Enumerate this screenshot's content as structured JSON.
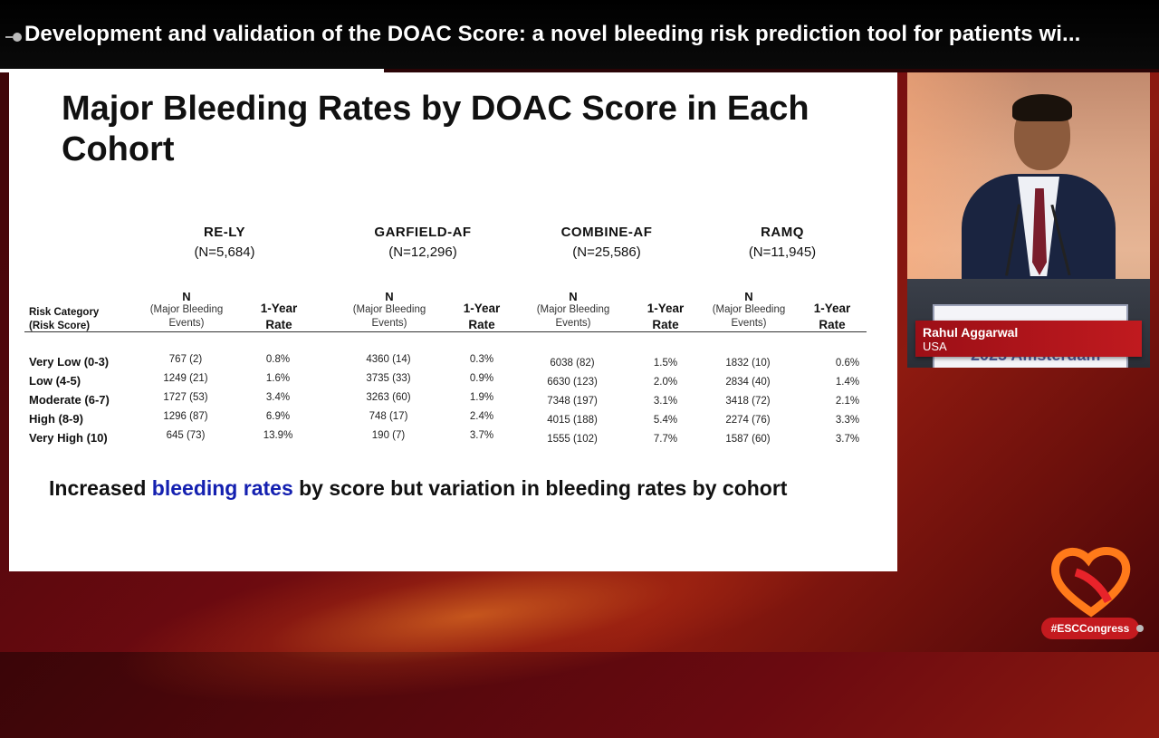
{
  "header": {
    "title": "Development and validation of the DOAC Score: a novel bleeding risk prediction tool for patients wi..."
  },
  "slide": {
    "title": "Major Bleeding Rates by DOAC Score in Each Cohort",
    "cohorts": [
      {
        "name": "RE-LY",
        "n": "(N=5,684)"
      },
      {
        "name": "GARFIELD-AF",
        "n": "(N=12,296)"
      },
      {
        "name": "COMBINE-AF",
        "n": "(N=25,586)"
      },
      {
        "name": "RAMQ",
        "n": "(N=11,945)"
      }
    ],
    "col_headers": {
      "risk_line1": "Risk Category",
      "risk_line2": "(Risk Score)",
      "n_big": "N",
      "n_small1": "(Major Bleeding",
      "n_small2": "Events)",
      "rate_line1": "1-Year",
      "rate_line2": "Rate"
    },
    "rows": [
      {
        "label": "Very Low (0-3)",
        "cells": [
          "767 (2)",
          "0.8%",
          "4360 (14)",
          "0.3%",
          "6038 (82)",
          "1.5%",
          "1832 (10)",
          "0.6%"
        ]
      },
      {
        "label": "Low (4-5)",
        "cells": [
          "1249 (21)",
          "1.6%",
          "3735 (33)",
          "0.9%",
          "6630 (123)",
          "2.0%",
          "2834 (40)",
          "1.4%"
        ]
      },
      {
        "label": "Moderate (6-7)",
        "cells": [
          "1727 (53)",
          "3.4%",
          "3263 (60)",
          "1.9%",
          "7348 (197)",
          "3.1%",
          "3418 (72)",
          "2.1%"
        ]
      },
      {
        "label": "High (8-9)",
        "cells": [
          "1296 (87)",
          "6.9%",
          "748 (17)",
          "2.4%",
          "4015 (188)",
          "5.4%",
          "2274 (76)",
          "3.3%"
        ]
      },
      {
        "label": "Very High (10)",
        "cells": [
          "645 (73)",
          "13.9%",
          "190 (7)",
          "3.7%",
          "1555 (102)",
          "7.7%",
          "1587 (60)",
          "3.7%"
        ]
      }
    ],
    "takeaway": {
      "pre": "Increased ",
      "highlight": "bleeding rates",
      "post": " by score but variation in bleeding rates by cohort"
    }
  },
  "speaker": {
    "name": "Rahul Aggarwal",
    "country": "USA",
    "podium_text": "2025 Amsterdam"
  },
  "branding": {
    "hashtag": "#ESCCongress"
  },
  "colors": {
    "accent_red": "#c01a1f",
    "highlight_blue": "#1420b0"
  }
}
